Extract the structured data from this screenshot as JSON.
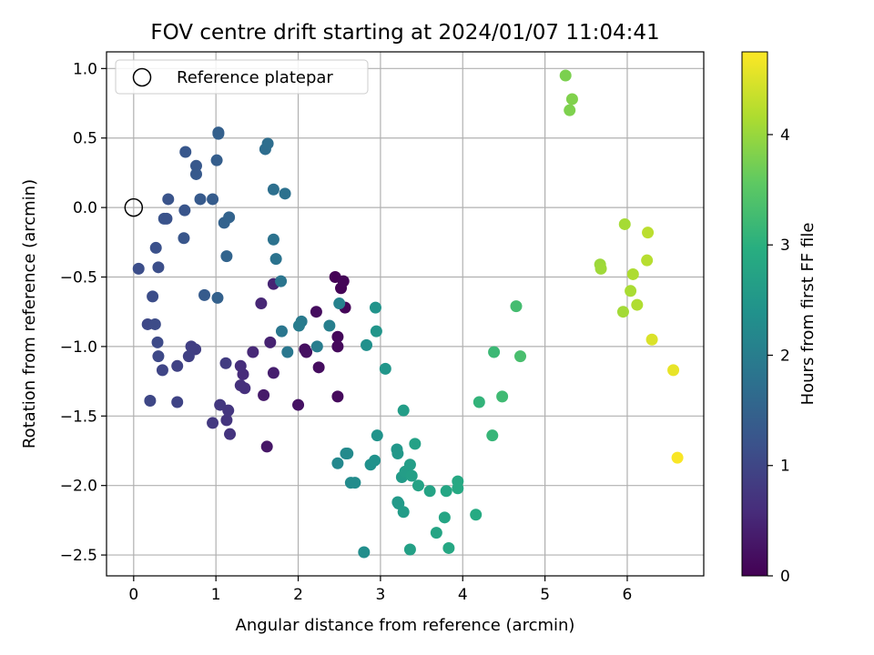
{
  "chart_data": {
    "type": "scatter",
    "title": "FOV centre drift starting at 2024/01/07 11:04:41",
    "xlabel": "Angular distance from reference (arcmin)",
    "ylabel": "Rotation from reference (arcmin)",
    "xlim": [
      -0.33,
      6.93
    ],
    "ylim": [
      -2.65,
      1.12
    ],
    "xticks": [
      0,
      1,
      2,
      3,
      4,
      5,
      6
    ],
    "xtick_labels": [
      "0",
      "1",
      "2",
      "3",
      "4",
      "5",
      "6"
    ],
    "yticks": [
      1.0,
      0.5,
      0.0,
      -0.5,
      -1.0,
      -1.5,
      -2.0,
      -2.5
    ],
    "ytick_labels": [
      "1.0",
      "0.5",
      "0.0",
      "−0.5",
      "−1.0",
      "−1.5",
      "−2.0",
      "−2.5"
    ],
    "grid": true,
    "legend": {
      "position": "upper-left",
      "entries": [
        "Reference platepar"
      ]
    },
    "reference_point": {
      "x": 0.0,
      "y": 0.0
    },
    "colorbar": {
      "label": "Hours from first FF file",
      "colormap": "viridis",
      "range": [
        0,
        4.75
      ],
      "ticks": [
        0,
        1,
        2,
        3,
        4
      ],
      "tick_labels": [
        "0",
        "1",
        "2",
        "3",
        "4"
      ]
    },
    "points": [
      [
        2.45,
        -0.5,
        0.02
      ],
      [
        2.52,
        -0.58,
        0.03
      ],
      [
        2.55,
        -0.53,
        0.05
      ],
      [
        2.57,
        -0.72,
        0.07
      ],
      [
        2.48,
        -0.93,
        0.09
      ],
      [
        2.48,
        -1.0,
        0.11
      ],
      [
        2.48,
        -1.36,
        0.13
      ],
      [
        2.22,
        -0.75,
        0.15
      ],
      [
        2.25,
        -1.15,
        0.17
      ],
      [
        2.08,
        -1.02,
        0.19
      ],
      [
        2.1,
        -1.04,
        0.21
      ],
      [
        2.0,
        -1.42,
        0.23
      ],
      [
        1.62,
        -1.72,
        0.3
      ],
      [
        1.58,
        -1.35,
        0.35
      ],
      [
        1.7,
        -1.19,
        0.4
      ],
      [
        1.66,
        -0.97,
        0.45
      ],
      [
        1.7,
        -0.55,
        0.48
      ],
      [
        1.55,
        -0.69,
        0.52
      ],
      [
        1.45,
        -1.04,
        0.55
      ],
      [
        1.33,
        -1.2,
        0.6
      ],
      [
        1.3,
        -1.14,
        0.62
      ],
      [
        1.35,
        -1.3,
        0.65
      ],
      [
        1.3,
        -1.28,
        0.68
      ],
      [
        1.17,
        -1.63,
        0.72
      ],
      [
        1.13,
        -1.53,
        0.74
      ],
      [
        1.15,
        -1.46,
        0.76
      ],
      [
        1.05,
        -1.42,
        0.78
      ],
      [
        0.96,
        -1.55,
        0.8
      ],
      [
        1.12,
        -1.12,
        0.85
      ],
      [
        0.75,
        -1.02,
        0.88
      ],
      [
        0.7,
        -1.0,
        0.9
      ],
      [
        0.67,
        -1.07,
        0.92
      ],
      [
        0.53,
        -1.14,
        0.95
      ],
      [
        0.53,
        -1.4,
        0.97
      ],
      [
        0.35,
        -1.17,
        1.0
      ],
      [
        0.2,
        -1.39,
        1.02
      ],
      [
        0.17,
        -0.84,
        1.04
      ],
      [
        0.3,
        -1.07,
        1.06
      ],
      [
        0.29,
        -0.97,
        1.08
      ],
      [
        0.26,
        -0.84,
        1.1
      ],
      [
        0.23,
        -0.64,
        1.12
      ],
      [
        0.06,
        -0.44,
        1.14
      ],
      [
        0.3,
        -0.43,
        1.16
      ],
      [
        0.27,
        -0.29,
        1.18
      ],
      [
        0.4,
        -0.08,
        1.2
      ],
      [
        0.37,
        -0.08,
        1.22
      ],
      [
        0.42,
        0.06,
        1.24
      ],
      [
        0.62,
        -0.02,
        1.26
      ],
      [
        0.61,
        -0.22,
        1.28
      ],
      [
        0.63,
        0.4,
        1.3
      ],
      [
        0.76,
        0.3,
        1.32
      ],
      [
        0.76,
        0.24,
        1.34
      ],
      [
        0.81,
        0.06,
        1.36
      ],
      [
        0.86,
        -0.63,
        1.38
      ],
      [
        0.96,
        0.06,
        1.4
      ],
      [
        1.01,
        0.34,
        1.42
      ],
      [
        1.03,
        0.54,
        1.44
      ],
      [
        1.03,
        0.53,
        1.46
      ],
      [
        1.02,
        -0.65,
        1.48
      ],
      [
        1.1,
        -0.11,
        1.5
      ],
      [
        1.16,
        -0.07,
        1.52
      ],
      [
        1.13,
        -0.35,
        1.54
      ],
      [
        1.6,
        0.42,
        1.7
      ],
      [
        1.63,
        0.46,
        1.72
      ],
      [
        1.7,
        0.13,
        1.75
      ],
      [
        1.84,
        0.1,
        1.78
      ],
      [
        1.7,
        -0.23,
        1.8
      ],
      [
        1.73,
        -0.37,
        1.82
      ],
      [
        1.79,
        -0.53,
        1.85
      ],
      [
        1.8,
        -0.89,
        1.88
      ],
      [
        1.87,
        -1.04,
        1.9
      ],
      [
        2.04,
        -0.82,
        1.95
      ],
      [
        2.01,
        -0.85,
        1.98
      ],
      [
        2.23,
        -1.0,
        2.0
      ],
      [
        2.38,
        -0.85,
        2.05
      ],
      [
        2.5,
        -0.69,
        2.1
      ],
      [
        2.48,
        -1.84,
        2.2
      ],
      [
        2.58,
        -1.77,
        2.22
      ],
      [
        2.6,
        -1.77,
        2.24
      ],
      [
        2.64,
        -1.98,
        2.26
      ],
      [
        2.69,
        -1.98,
        2.28
      ],
      [
        2.8,
        -2.48,
        2.32
      ],
      [
        2.83,
        -0.99,
        2.35
      ],
      [
        2.88,
        -1.85,
        2.38
      ],
      [
        2.93,
        -1.82,
        2.4
      ],
      [
        2.96,
        -1.64,
        2.42
      ],
      [
        2.94,
        -0.72,
        2.44
      ],
      [
        2.95,
        -0.89,
        2.46
      ],
      [
        3.06,
        -1.16,
        2.48
      ],
      [
        3.2,
        -1.74,
        2.5
      ],
      [
        3.21,
        -1.77,
        2.52
      ],
      [
        3.21,
        -2.12,
        2.54
      ],
      [
        3.22,
        -2.13,
        2.56
      ],
      [
        3.26,
        -1.94,
        2.58
      ],
      [
        3.28,
        -2.19,
        2.6
      ],
      [
        3.28,
        -1.46,
        2.62
      ],
      [
        3.3,
        -1.9,
        2.64
      ],
      [
        3.36,
        -1.85,
        2.66
      ],
      [
        3.38,
        -1.93,
        2.68
      ],
      [
        3.36,
        -2.46,
        2.7
      ],
      [
        3.42,
        -1.7,
        2.72
      ],
      [
        3.46,
        -2.0,
        2.74
      ],
      [
        3.6,
        -2.04,
        2.76
      ],
      [
        3.68,
        -2.34,
        2.78
      ],
      [
        3.78,
        -2.23,
        2.8
      ],
      [
        3.8,
        -2.04,
        2.82
      ],
      [
        3.83,
        -2.45,
        2.84
      ],
      [
        3.94,
        -1.97,
        2.86
      ],
      [
        3.94,
        -2.02,
        2.88
      ],
      [
        4.16,
        -2.21,
        2.9
      ],
      [
        4.2,
        -1.4,
        3.1
      ],
      [
        4.36,
        -1.64,
        3.15
      ],
      [
        4.38,
        -1.04,
        3.2
      ],
      [
        4.48,
        -1.36,
        3.25
      ],
      [
        4.65,
        -0.71,
        3.3
      ],
      [
        4.7,
        -1.07,
        3.35
      ],
      [
        5.25,
        0.95,
        3.8
      ],
      [
        5.3,
        0.7,
        3.82
      ],
      [
        5.33,
        0.78,
        3.84
      ],
      [
        5.67,
        -0.41,
        4.05
      ],
      [
        5.68,
        -0.44,
        4.07
      ],
      [
        5.95,
        -0.75,
        4.1
      ],
      [
        5.97,
        -0.12,
        4.12
      ],
      [
        6.04,
        -0.6,
        4.15
      ],
      [
        6.07,
        -0.48,
        4.18
      ],
      [
        6.12,
        -0.7,
        4.2
      ],
      [
        6.24,
        -0.38,
        4.25
      ],
      [
        6.25,
        -0.18,
        4.28
      ],
      [
        6.3,
        -0.95,
        4.5
      ],
      [
        6.56,
        -1.17,
        4.6
      ],
      [
        6.61,
        -1.8,
        4.72
      ]
    ]
  }
}
